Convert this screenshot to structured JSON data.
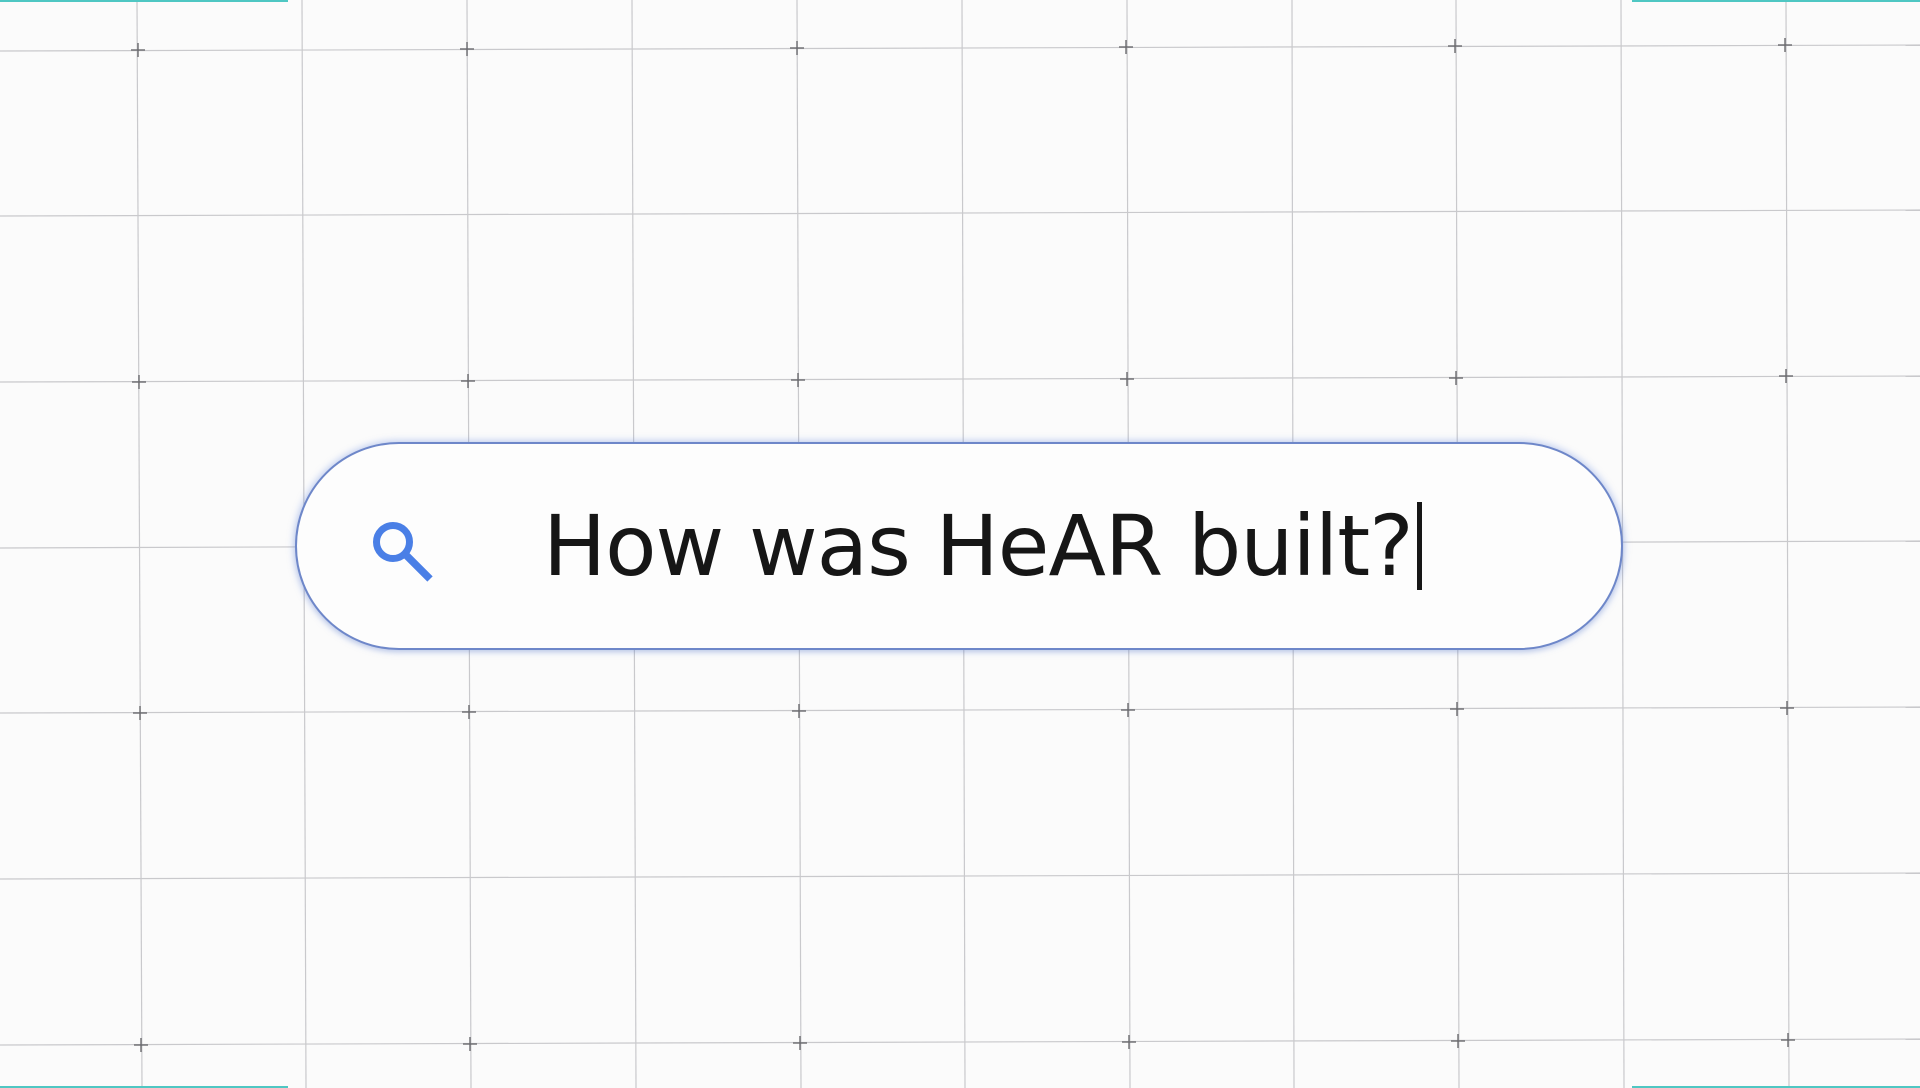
{
  "search": {
    "query": "How was HeAR built?",
    "icon": "search-icon"
  },
  "colors": {
    "background": "#fbfbfb",
    "grid_line": "#c9c9cc",
    "grid_cross": "#6a6a6e",
    "search_border": "#6e87c9",
    "search_icon": "#4a7fe6",
    "accent": "#4fc7c3",
    "text": "#161616"
  }
}
